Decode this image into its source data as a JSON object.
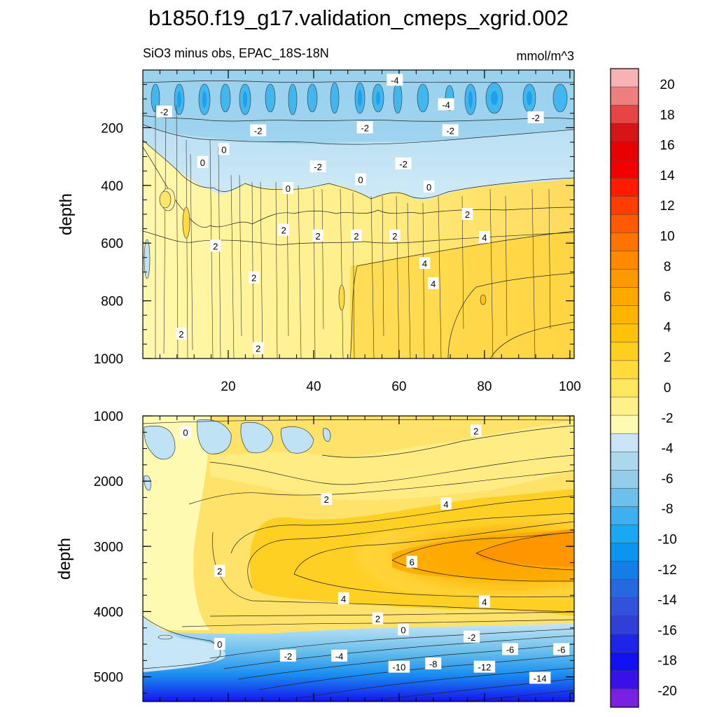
{
  "chart_data": {
    "type": "contour",
    "title": "b1850.f19_g17.validation_cmeps_xgrid.002",
    "subtitle_left": "SiO3 minus obs, EPAC_18S-18N",
    "subtitle_right": "mmol/m^3",
    "panels": [
      {
        "name": "upper",
        "ylabel": "depth",
        "xlim": [
          0,
          101
        ],
        "ylim": [
          1000,
          0
        ],
        "y_ticks": [
          "200",
          "400",
          "600",
          "800",
          "1000"
        ],
        "y_tick_values": [
          200,
          400,
          600,
          800,
          1000
        ],
        "x_ticks": [
          "20",
          "40",
          "60",
          "80",
          "100"
        ],
        "x_tick_values": [
          20,
          40,
          60,
          80,
          100
        ],
        "contour_labels": [
          {
            "text": "-2",
            "x": 5,
            "y": 145
          },
          {
            "text": "-4",
            "x": 59,
            "y": 35
          },
          {
            "text": "-4",
            "x": 71,
            "y": 120
          },
          {
            "text": "-2",
            "x": 27,
            "y": 210
          },
          {
            "text": "-2",
            "x": 52,
            "y": 200
          },
          {
            "text": "-2",
            "x": 72,
            "y": 210
          },
          {
            "text": "-2",
            "x": 92,
            "y": 165
          },
          {
            "text": "0",
            "x": 14,
            "y": 320
          },
          {
            "text": "0",
            "x": 19,
            "y": 275
          },
          {
            "text": "-2",
            "x": 41,
            "y": 335
          },
          {
            "text": "-2",
            "x": 61,
            "y": 325
          },
          {
            "text": "0",
            "x": 51,
            "y": 380
          },
          {
            "text": "0",
            "x": 34,
            "y": 410
          },
          {
            "text": "0",
            "x": 67,
            "y": 405
          },
          {
            "text": "2",
            "x": 76,
            "y": 500
          },
          {
            "text": "2",
            "x": 33,
            "y": 555
          },
          {
            "text": "2",
            "x": 41,
            "y": 575
          },
          {
            "text": "2",
            "x": 50,
            "y": 575
          },
          {
            "text": "2",
            "x": 59,
            "y": 575
          },
          {
            "text": "4",
            "x": 80,
            "y": 580
          },
          {
            "text": "2",
            "x": 17,
            "y": 610
          },
          {
            "text": "4",
            "x": 66,
            "y": 670
          },
          {
            "text": "2",
            "x": 26,
            "y": 720
          },
          {
            "text": "4",
            "x": 68,
            "y": 740
          },
          {
            "text": "2",
            "x": 9,
            "y": 915
          },
          {
            "text": "2",
            "x": 27,
            "y": 965
          }
        ]
      },
      {
        "name": "lower",
        "ylabel": "depth",
        "xlim": [
          0,
          101
        ],
        "ylim": [
          5380,
          1000
        ],
        "y_ticks": [
          "1000",
          "2000",
          "3000",
          "4000",
          "5000"
        ],
        "y_tick_values": [
          1000,
          2000,
          3000,
          4000,
          5000
        ],
        "contour_labels": [
          {
            "text": "0",
            "x": 10,
            "y": 1250
          },
          {
            "text": "2",
            "x": 78,
            "y": 1230
          },
          {
            "text": "2",
            "x": 43,
            "y": 2280
          },
          {
            "text": "4",
            "x": 71,
            "y": 2350
          },
          {
            "text": "2",
            "x": 18,
            "y": 3380
          },
          {
            "text": "6",
            "x": 63,
            "y": 3240
          },
          {
            "text": "4",
            "x": 47,
            "y": 3800
          },
          {
            "text": "4",
            "x": 80,
            "y": 3850
          },
          {
            "text": "2",
            "x": 55,
            "y": 4110
          },
          {
            "text": "0",
            "x": 61,
            "y": 4280
          },
          {
            "text": "-2",
            "x": 77,
            "y": 4390
          },
          {
            "text": "0",
            "x": 18,
            "y": 4500
          },
          {
            "text": "-2",
            "x": 34,
            "y": 4680
          },
          {
            "text": "-4",
            "x": 46,
            "y": 4680
          },
          {
            "text": "-6",
            "x": 86,
            "y": 4580
          },
          {
            "text": "-6",
            "x": 98,
            "y": 4580
          },
          {
            "text": "-10",
            "x": 60,
            "y": 4850
          },
          {
            "text": "-8",
            "x": 68,
            "y": 4800
          },
          {
            "text": "-12",
            "x": 80,
            "y": 4850
          },
          {
            "text": "-14",
            "x": 93,
            "y": 5020
          }
        ]
      }
    ],
    "colorbar": {
      "labels": [
        "20",
        "18",
        "16",
        "14",
        "12",
        "10",
        "8",
        "6",
        "4",
        "2",
        "0",
        "-2",
        "-4",
        "-6",
        "-8",
        "-10",
        "-12",
        "-14",
        "-16",
        "-18",
        "-20"
      ],
      "colors": [
        "#f7b3b3",
        "#ef7f7f",
        "#e54545",
        "#d51515",
        "#e60000",
        "#f20000",
        "#ff1a00",
        "#ff3d00",
        "#ff5a00",
        "#ff7400",
        "#ff8a00",
        "#ff9900",
        "#ffa800",
        "#ffb400",
        "#ffc20a",
        "#ffcf1f",
        "#ffdc3a",
        "#ffe65e",
        "#fff08a",
        "#fffab2",
        "#c9e4f4",
        "#acd8ee",
        "#92cdea",
        "#6cc0ec",
        "#3fb0ef",
        "#18a8f4",
        "#0c95f0",
        "#157de8",
        "#2568e0",
        "#3152db",
        "#2f3fd8",
        "#1f25e8",
        "#1010f0",
        "#3a10e8",
        "#7a20e0"
      ]
    }
  }
}
